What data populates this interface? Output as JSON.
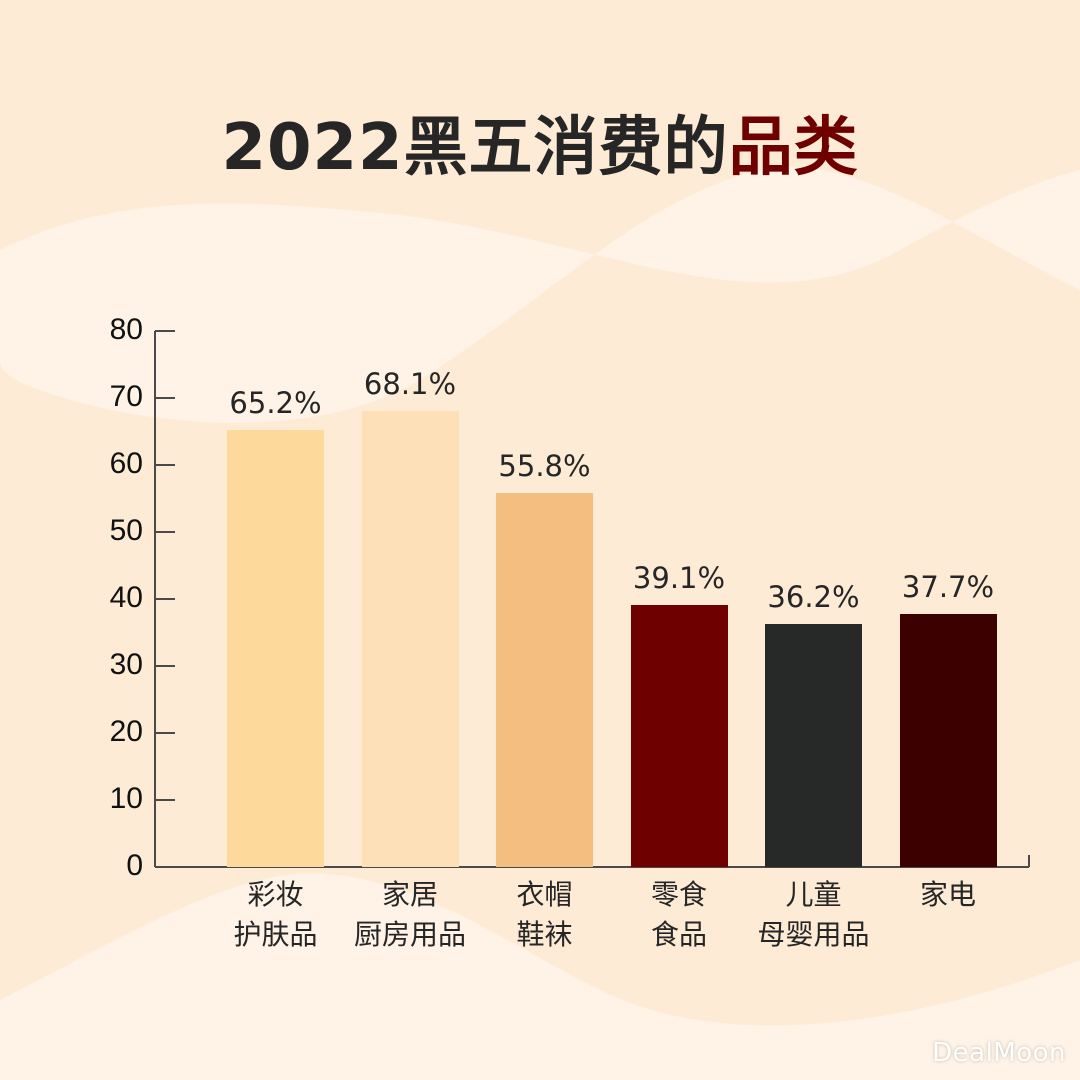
{
  "title": {
    "prefix": "2022黑五消费的",
    "accent": "品类",
    "accent_color": "#6e0000"
  },
  "colors": {
    "background": "#fdebd6",
    "wave_light": "#fef3e6",
    "text": "#262626"
  },
  "chart_data": {
    "type": "bar",
    "title": "2022黑五消费的品类",
    "xlabel": "",
    "ylabel": "",
    "ylim": [
      0,
      80
    ],
    "yticks": [
      0,
      10,
      20,
      30,
      40,
      50,
      60,
      70,
      80
    ],
    "grid": false,
    "legend": null,
    "categories": [
      "彩妆护肤品",
      "家居厨房用品",
      "衣帽鞋袜",
      "零食食品",
      "儿童母婴用品",
      "家电"
    ],
    "category_lines": [
      [
        "彩妆",
        "护肤品"
      ],
      [
        "家居",
        "厨房用品"
      ],
      [
        "衣帽",
        "鞋袜"
      ],
      [
        "零食",
        "食品"
      ],
      [
        "儿童",
        "母婴用品"
      ],
      [
        "家电",
        ""
      ]
    ],
    "values": [
      65.2,
      68.1,
      55.8,
      39.1,
      36.2,
      37.7
    ],
    "value_labels": [
      "65.2%",
      "68.1%",
      "55.8%",
      "39.1%",
      "36.2%",
      "37.7%"
    ],
    "bar_colors": [
      "#fdd99b",
      "#fde0b8",
      "#f3be7f",
      "#6e0000",
      "#272928",
      "#3d0000"
    ]
  },
  "watermark": "DealMoon"
}
